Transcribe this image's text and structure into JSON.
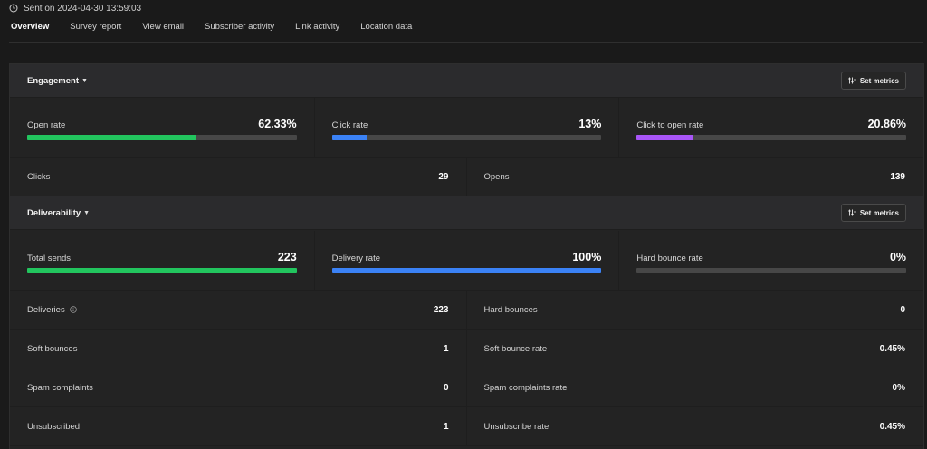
{
  "header": {
    "sent_text": "Sent on 2024-04-30 13:59:03"
  },
  "tabs": [
    {
      "label": "Overview",
      "active": true
    },
    {
      "label": "Survey report",
      "active": false
    },
    {
      "label": "View email",
      "active": false
    },
    {
      "label": "Subscriber activity",
      "active": false
    },
    {
      "label": "Link activity",
      "active": false
    },
    {
      "label": "Location data",
      "active": false
    }
  ],
  "engagement": {
    "title": "Engagement",
    "set_metrics_label": "Set metrics",
    "metrics": [
      {
        "label": "Open rate",
        "value": "62.33%",
        "fill": 0.6233,
        "color": "#22c55e"
      },
      {
        "label": "Click rate",
        "value": "13%",
        "fill": 0.13,
        "color": "#3b82f6"
      },
      {
        "label": "Click to open rate",
        "value": "20.86%",
        "fill": 0.2086,
        "color": "#a855f7"
      }
    ],
    "stats": [
      {
        "label": "Clicks",
        "value": "29"
      },
      {
        "label": "Opens",
        "value": "139"
      }
    ]
  },
  "deliverability": {
    "title": "Deliverability",
    "set_metrics_label": "Set metrics",
    "metrics": [
      {
        "label": "Total sends",
        "value": "223",
        "fill": 1.0,
        "color": "#22c55e"
      },
      {
        "label": "Delivery rate",
        "value": "100%",
        "fill": 1.0,
        "color": "#3b82f6"
      },
      {
        "label": "Hard bounce rate",
        "value": "0%",
        "fill": 0.0,
        "color": "#ef4444"
      }
    ],
    "stats": [
      [
        {
          "label": "Deliveries",
          "value": "223"
        },
        {
          "label": "Hard bounces",
          "value": "0"
        }
      ],
      [
        {
          "label": "Soft bounces",
          "value": "1"
        },
        {
          "label": "Soft bounce rate",
          "value": "0.45%"
        }
      ],
      [
        {
          "label": "Spam complaints",
          "value": "0"
        },
        {
          "label": "Spam complaints rate",
          "value": "0%"
        }
      ],
      [
        {
          "label": "Unsubscribed",
          "value": "1"
        },
        {
          "label": "Unsubscribe rate",
          "value": "0.45%"
        }
      ]
    ]
  },
  "icons": {
    "clock": "clock-icon",
    "caret": "caret-down-icon",
    "sliders": "sliders-icon",
    "info": "info-icon"
  }
}
